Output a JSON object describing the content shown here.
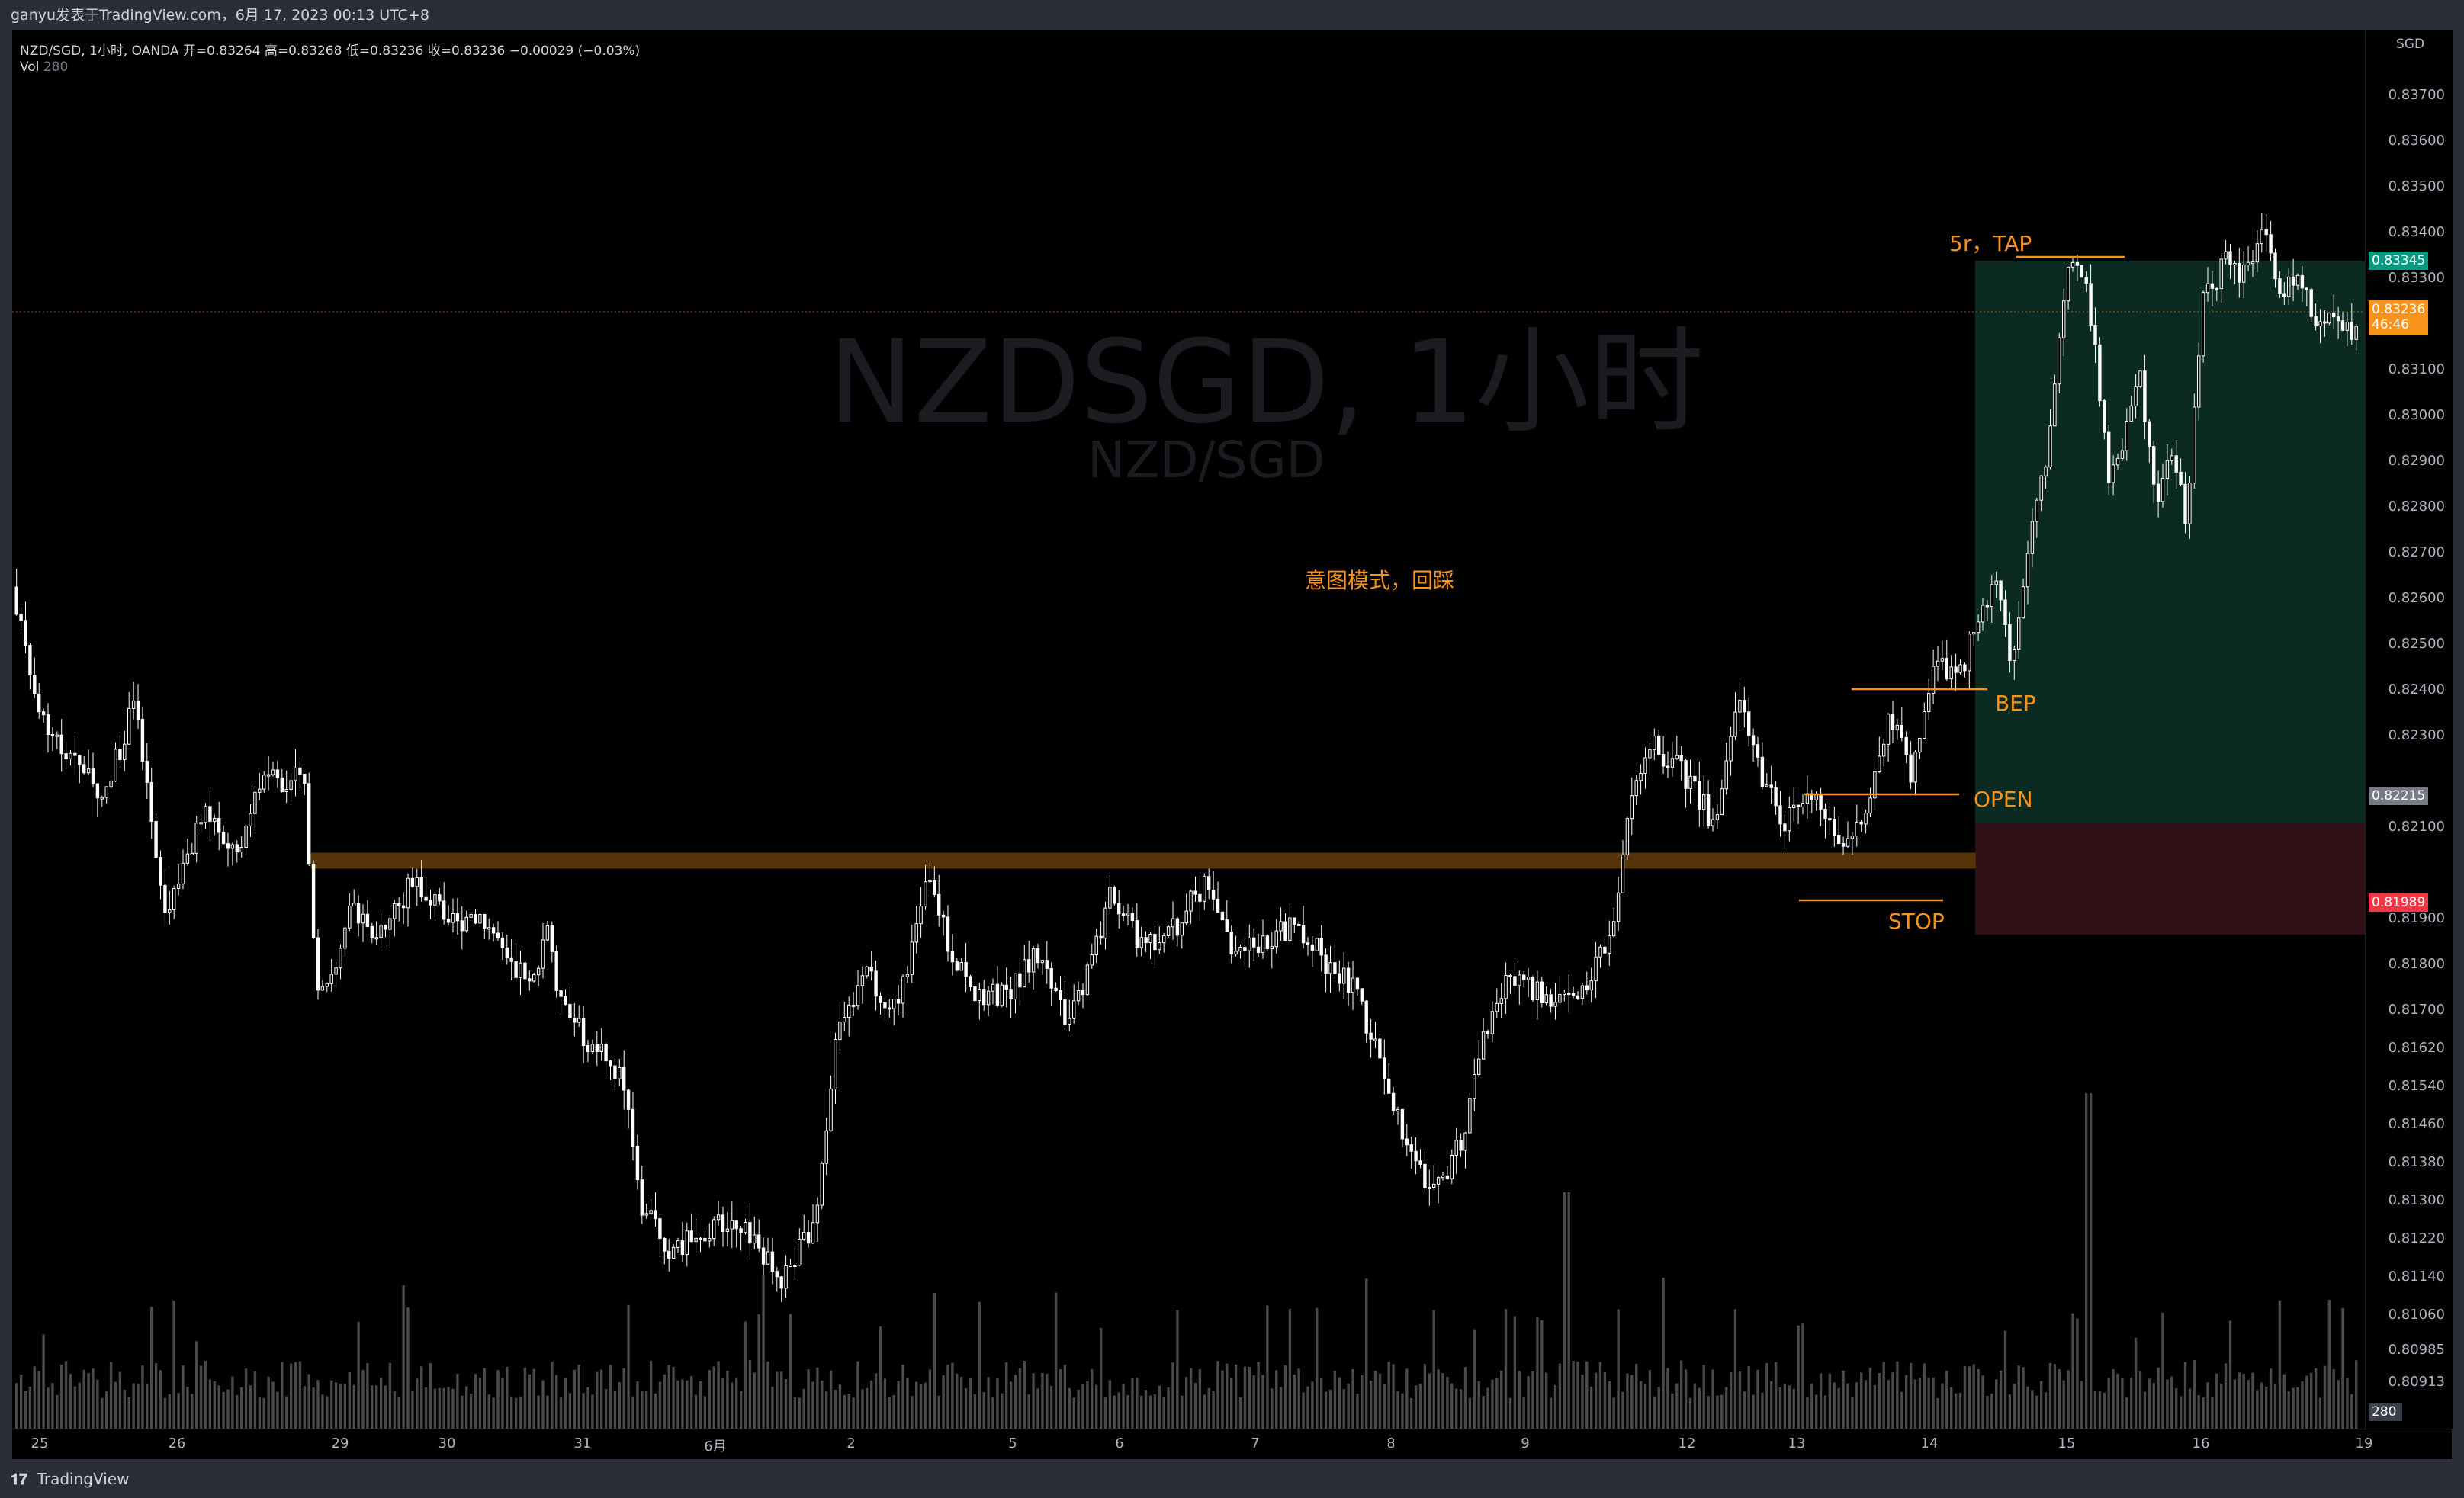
{
  "topbar": {
    "text": "ganyu发表于TradingView.com，6月 17, 2023 00:13 UTC+8"
  },
  "legend": {
    "symbol_line": "NZD/SGD, 1小时, OANDA  开=0.83264  高=0.83268  低=0.83236  收=0.83236  −0.00029 (−0.03%)",
    "vol_label": "Vol",
    "vol_value": "280"
  },
  "watermark": {
    "title": "NZDSGD, 1小时",
    "subtitle": "NZD/SGD"
  },
  "annotations": {
    "tap": "5r，TAP",
    "intent": "意图模式，回踩",
    "bep": "BEP",
    "open": "OPEN",
    "stop": "STOP"
  },
  "price_axis": {
    "currency": "SGD",
    "ticks": [
      "0.83700",
      "0.83600",
      "0.83500",
      "0.83400",
      "0.83300",
      "0.83100",
      "0.83000",
      "0.82900",
      "0.82800",
      "0.82700",
      "0.82600",
      "0.82500",
      "0.82400",
      "0.82300",
      "0.82100",
      "0.81900",
      "0.81800",
      "0.81700",
      "0.81620",
      "0.81540",
      "0.81460",
      "0.81380",
      "0.81300",
      "0.81220",
      "0.81140",
      "0.81060",
      "0.80985",
      "0.80913"
    ],
    "badge_target": "0.83345",
    "badge_current": "0.83236",
    "badge_countdown": "46:46",
    "badge_open": "0.82215",
    "badge_stop": "0.81989",
    "badge_vol": "280"
  },
  "time_axis": {
    "labels": [
      "25",
      "26",
      "29",
      "30",
      "31",
      "6月",
      "2",
      "5",
      "6",
      "7",
      "8",
      "9",
      "12",
      "13",
      "14",
      "15",
      "16",
      "19"
    ]
  },
  "footer": {
    "brand": "TradingView"
  },
  "colors": {
    "candle": "#ffffff",
    "accent": "#f7931a",
    "profit_zone": "#0a2a22",
    "loss_zone": "#2e1016",
    "target_badge": "#089981",
    "stop_badge": "#f23645",
    "current_badge": "#f7931a",
    "volume": "#4a4a4a"
  }
}
